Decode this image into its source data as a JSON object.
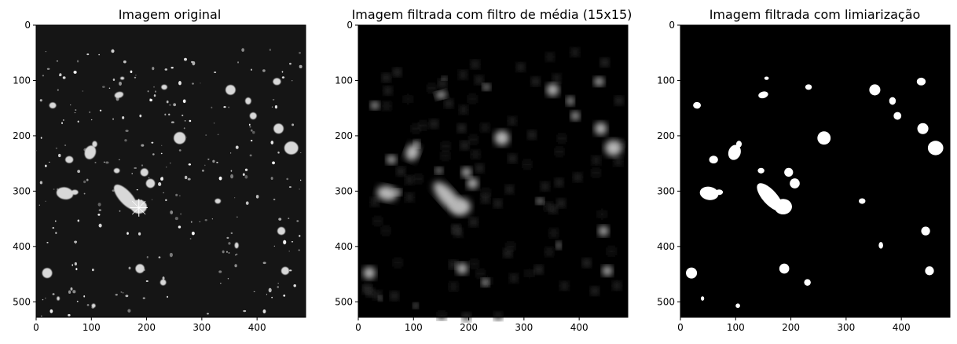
{
  "figure": {
    "background": "#ffffff",
    "image_colormap": "gray"
  },
  "chart_data": [
    {
      "type": "heatmap",
      "title": "Imagem original",
      "image_size": [
        488,
        528
      ],
      "xlim": [
        0,
        488
      ],
      "ylim": [
        528,
        0
      ],
      "x_ticks": [
        0,
        100,
        200,
        300,
        400
      ],
      "y_ticks": [
        0,
        100,
        200,
        300,
        400,
        500
      ],
      "content": "noisy-starfield"
    },
    {
      "type": "heatmap",
      "title": "Imagem filtrada com filtro de média (15x15)",
      "image_size": [
        488,
        528
      ],
      "xlim": [
        0,
        488
      ],
      "ylim": [
        528,
        0
      ],
      "x_ticks": [
        0,
        100,
        200,
        300,
        400
      ],
      "y_ticks": [
        0,
        100,
        200,
        300,
        400,
        500
      ],
      "content": "blurred"
    },
    {
      "type": "heatmap",
      "title": "Imagem filtrada com limiarização",
      "image_size": [
        488,
        528
      ],
      "xlim": [
        0,
        488
      ],
      "ylim": [
        528,
        0
      ],
      "x_ticks": [
        0,
        100,
        200,
        300,
        400
      ],
      "y_ticks": [
        0,
        100,
        200,
        300,
        400,
        500
      ],
      "content": "binary"
    }
  ],
  "blobs": [
    {
      "x": 30,
      "y": 145,
      "rx": 7,
      "ry": 6,
      "rot": 0
    },
    {
      "x": 156,
      "y": 96,
      "rx": 4,
      "ry": 3,
      "rot": 0
    },
    {
      "x": 150,
      "y": 126,
      "rx": 9,
      "ry": 6,
      "rot": -15
    },
    {
      "x": 232,
      "y": 112,
      "rx": 6,
      "ry": 5,
      "rot": 0
    },
    {
      "x": 352,
      "y": 117,
      "rx": 10,
      "ry": 10,
      "rot": 0
    },
    {
      "x": 436,
      "y": 102,
      "rx": 8,
      "ry": 7,
      "rot": 0
    },
    {
      "x": 384,
      "y": 137,
      "rx": 6,
      "ry": 7,
      "rot": 0
    },
    {
      "x": 393,
      "y": 164,
      "rx": 7,
      "ry": 7,
      "rot": 0
    },
    {
      "x": 439,
      "y": 187,
      "rx": 10,
      "ry": 10,
      "rot": 0
    },
    {
      "x": 462,
      "y": 222,
      "rx": 14,
      "ry": 13,
      "rot": 0
    },
    {
      "x": 260,
      "y": 204,
      "rx": 12,
      "ry": 12,
      "rot": 0
    },
    {
      "x": 98,
      "y": 230,
      "rx": 11,
      "ry": 14,
      "rot": 20
    },
    {
      "x": 106,
      "y": 215,
      "rx": 5,
      "ry": 6,
      "rot": 0
    },
    {
      "x": 60,
      "y": 243,
      "rx": 8,
      "ry": 7,
      "rot": 0
    },
    {
      "x": 146,
      "y": 263,
      "rx": 6,
      "ry": 5,
      "rot": 0
    },
    {
      "x": 196,
      "y": 266,
      "rx": 8,
      "ry": 8,
      "rot": 0
    },
    {
      "x": 207,
      "y": 286,
      "rx": 9,
      "ry": 9,
      "rot": 0
    },
    {
      "x": 52,
      "y": 304,
      "rx": 17,
      "ry": 12,
      "rot": 10
    },
    {
      "x": 70,
      "y": 302,
      "rx": 7,
      "ry": 5,
      "rot": 0
    },
    {
      "x": 162,
      "y": 311,
      "rx": 13,
      "ry": 32,
      "rot": -42
    },
    {
      "x": 186,
      "y": 328,
      "rx": 16,
      "ry": 14,
      "rot": 0
    },
    {
      "x": 329,
      "y": 318,
      "rx": 6,
      "ry": 5,
      "rot": 0
    },
    {
      "x": 444,
      "y": 372,
      "rx": 8,
      "ry": 8,
      "rot": 0
    },
    {
      "x": 363,
      "y": 398,
      "rx": 4,
      "ry": 6,
      "rot": 0
    },
    {
      "x": 20,
      "y": 448,
      "rx": 10,
      "ry": 10,
      "rot": 0
    },
    {
      "x": 188,
      "y": 440,
      "rx": 9,
      "ry": 9,
      "rot": 0
    },
    {
      "x": 230,
      "y": 465,
      "rx": 6,
      "ry": 6,
      "rot": 0
    },
    {
      "x": 451,
      "y": 444,
      "rx": 8,
      "ry": 8,
      "rot": 0
    },
    {
      "x": 40,
      "y": 494,
      "rx": 3,
      "ry": 4,
      "rot": 0
    },
    {
      "x": 104,
      "y": 507,
      "rx": 4,
      "ry": 4,
      "rot": 0
    }
  ]
}
